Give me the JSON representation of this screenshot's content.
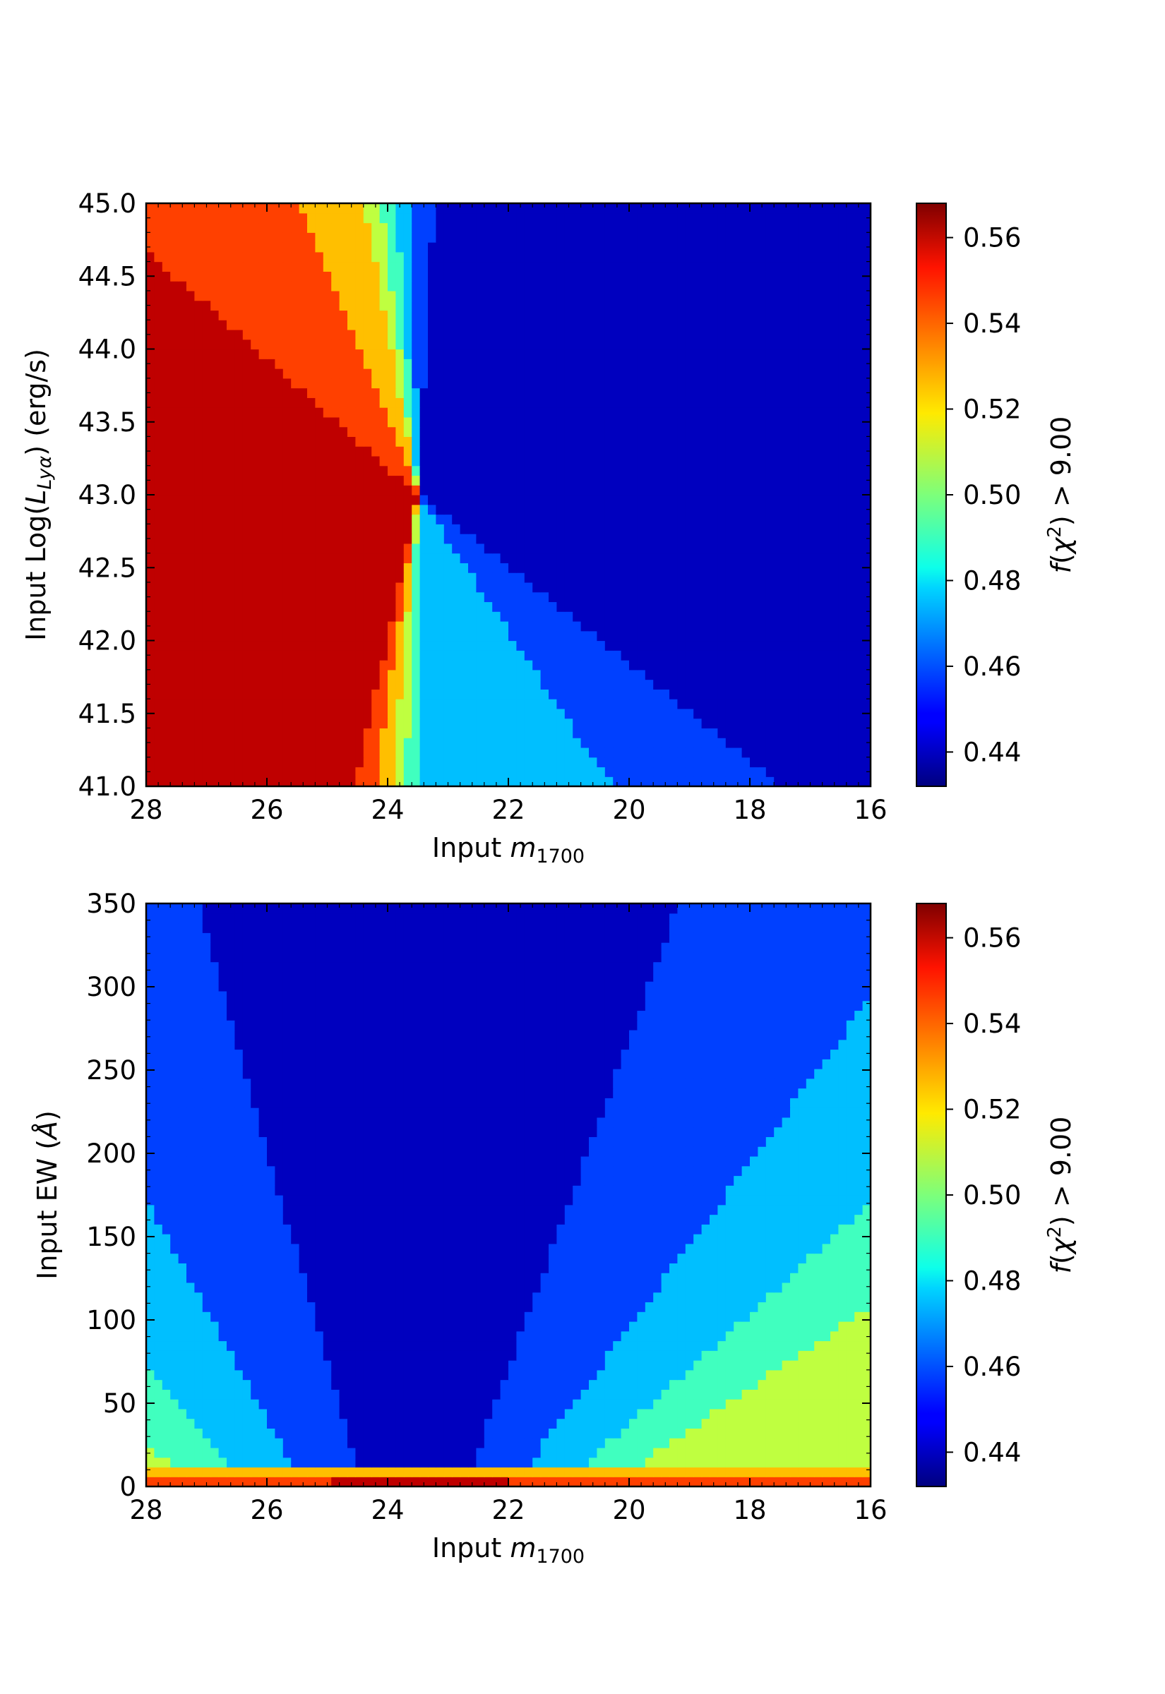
{
  "chart_data": [
    {
      "type": "heatmap",
      "title": "",
      "xlabel": "Input m1700",
      "ylabel": "Input Log(LLyα) (erg/s)",
      "xlim": [
        28,
        16
      ],
      "ylim": [
        41.0,
        45.0
      ],
      "x_ticks": [
        "28",
        "26",
        "24",
        "22",
        "20",
        "18",
        "16"
      ],
      "y_ticks": [
        "41.0",
        "41.5",
        "42.0",
        "42.5",
        "43.0",
        "43.5",
        "44.0",
        "44.5",
        "45.0"
      ],
      "x_pivot": 23.5,
      "y_pivot": 43.0,
      "colorbar": {
        "label": "f(χ2) > 9.00",
        "ticks": [
          "0.44",
          "0.46",
          "0.48",
          "0.50",
          "0.52",
          "0.54",
          "0.56"
        ],
        "range": [
          0.432,
          0.568
        ],
        "colormap": "jet"
      }
    },
    {
      "type": "heatmap",
      "title": "",
      "xlabel": "Input m1700",
      "ylabel": "Input EW (Å)",
      "xlim": [
        28,
        16
      ],
      "ylim": [
        0,
        350
      ],
      "x_ticks": [
        "28",
        "26",
        "24",
        "22",
        "20",
        "18",
        "16"
      ],
      "y_ticks": [
        "0",
        "50",
        "100",
        "150",
        "200",
        "250",
        "300",
        "350"
      ],
      "x_pivot": 23.5,
      "colorbar": {
        "label": "f(χ2) > 9.00",
        "ticks": [
          "0.44",
          "0.46",
          "0.48",
          "0.50",
          "0.52",
          "0.54",
          "0.56"
        ],
        "range": [
          0.432,
          0.568
        ],
        "colormap": "jet"
      }
    }
  ]
}
